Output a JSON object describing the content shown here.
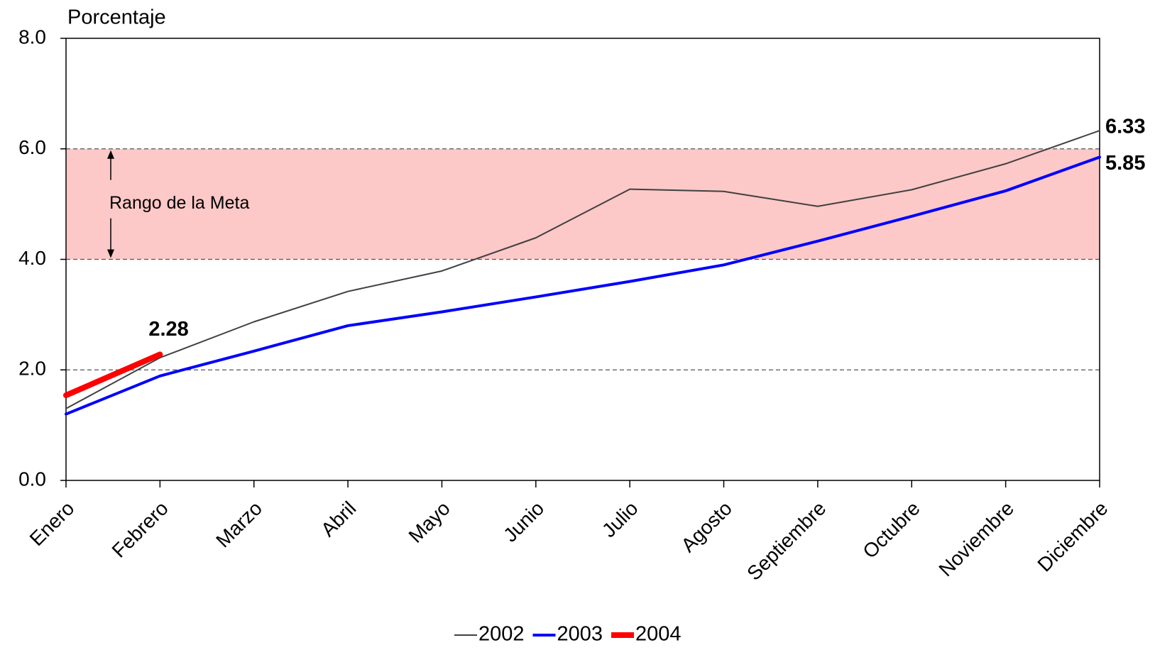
{
  "chart_data": {
    "type": "line",
    "y_label": "Porcentaje",
    "categories": [
      "Enero",
      "Febrero",
      "Marzo",
      "Abril",
      "Mayo",
      "Junio",
      "Julio",
      "Agosto",
      "Septiembre",
      "Octubre",
      "Noviembre",
      "Diciembre"
    ],
    "series": [
      {
        "name": "2002",
        "color": "#404040",
        "values": [
          1.3,
          2.22,
          2.87,
          3.42,
          3.79,
          4.39,
          5.27,
          5.23,
          4.96,
          5.26,
          5.73,
          6.33
        ]
      },
      {
        "name": "2003",
        "color": "#0000ff",
        "values": [
          1.2,
          1.89,
          2.34,
          2.8,
          3.05,
          3.32,
          3.6,
          3.9,
          4.33,
          4.78,
          5.24,
          5.85
        ]
      },
      {
        "name": "2004",
        "color": "#ff0000",
        "values": [
          1.54,
          2.28,
          null,
          null,
          null,
          null,
          null,
          null,
          null,
          null,
          null,
          null
        ]
      }
    ],
    "target_range": {
      "range": [
        4,
        6
      ],
      "label": "Rango de la Meta",
      "color": "#fcc8c8"
    },
    "ylim": [
      0,
      8
    ],
    "yticks": [
      {
        "value": 0,
        "label": "0.0"
      },
      {
        "value": 2,
        "label": "2.0"
      },
      {
        "value": 4,
        "label": "4.0"
      },
      {
        "value": 6,
        "label": "6.0"
      },
      {
        "value": 8,
        "label": "8.0"
      }
    ],
    "grid": true,
    "legend": "bottom"
  }
}
